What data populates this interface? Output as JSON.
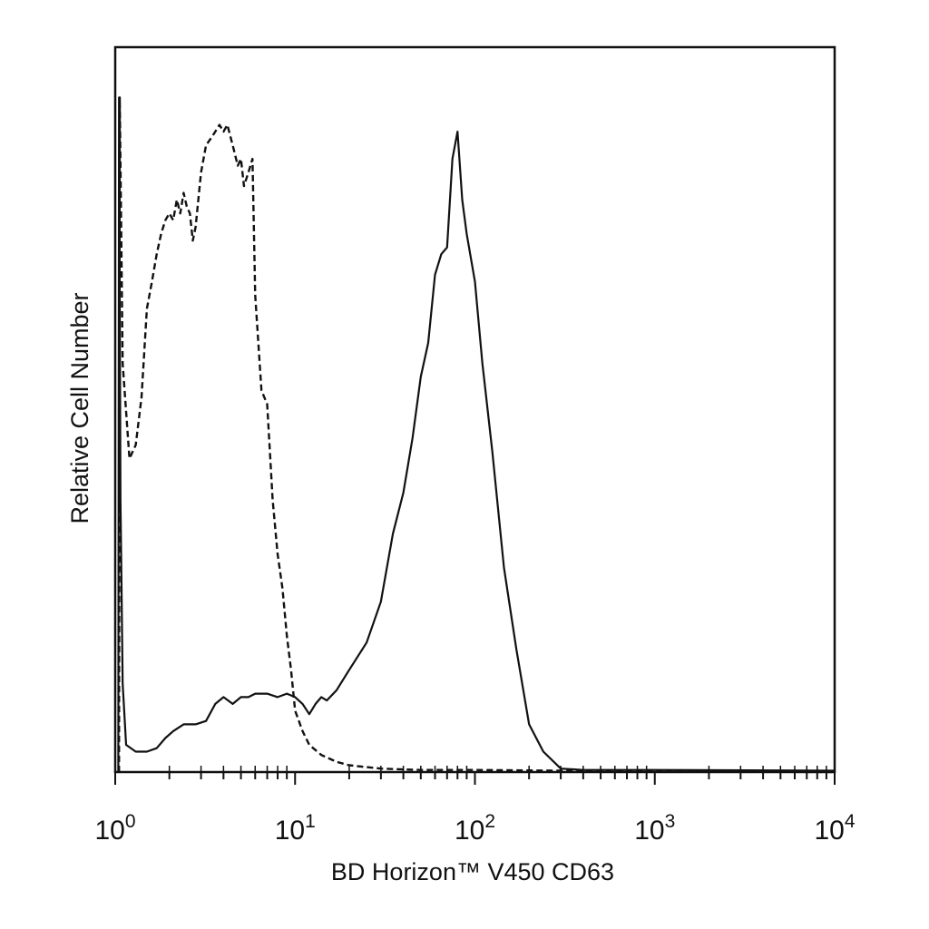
{
  "chart_data": {
    "type": "line",
    "title": "",
    "xlabel": "BD Horizon™ V450 CD63",
    "ylabel": "Relative Cell Number",
    "x_scale": "log",
    "xlim": [
      1,
      10000
    ],
    "ylim": [
      0,
      100
    ],
    "grid": false,
    "legend": "none",
    "x_ticks": [
      {
        "base": "10",
        "exp": "0",
        "value": 1
      },
      {
        "base": "10",
        "exp": "1",
        "value": 10
      },
      {
        "base": "10",
        "exp": "2",
        "value": 100
      },
      {
        "base": "10",
        "exp": "3",
        "value": 1000
      },
      {
        "base": "10",
        "exp": "4",
        "value": 10000
      }
    ],
    "series": [
      {
        "style": "dashed",
        "color": "#111111",
        "points": [
          [
            1.05,
            0
          ],
          [
            1.06,
            99
          ],
          [
            1.1,
            60
          ],
          [
            1.2,
            46
          ],
          [
            1.3,
            48
          ],
          [
            1.4,
            55
          ],
          [
            1.5,
            68
          ],
          [
            1.6,
            72
          ],
          [
            1.7,
            76
          ],
          [
            1.8,
            79
          ],
          [
            1.9,
            81
          ],
          [
            2.0,
            82
          ],
          [
            2.1,
            81
          ],
          [
            2.2,
            84
          ],
          [
            2.3,
            82
          ],
          [
            2.4,
            85
          ],
          [
            2.5,
            83
          ],
          [
            2.6,
            82
          ],
          [
            2.7,
            78
          ],
          [
            2.8,
            80
          ],
          [
            3.0,
            88
          ],
          [
            3.2,
            92
          ],
          [
            3.4,
            93
          ],
          [
            3.6,
            94
          ],
          [
            3.8,
            95
          ],
          [
            4.0,
            94
          ],
          [
            4.2,
            95
          ],
          [
            4.5,
            92
          ],
          [
            4.8,
            89
          ],
          [
            5.0,
            90
          ],
          [
            5.2,
            86
          ],
          [
            5.5,
            88
          ],
          [
            5.8,
            90
          ],
          [
            6.0,
            70
          ],
          [
            6.5,
            56
          ],
          [
            7.0,
            54
          ],
          [
            7.5,
            40
          ],
          [
            8.0,
            32
          ],
          [
            8.5,
            27
          ],
          [
            9.0,
            20
          ],
          [
            9.5,
            15
          ],
          [
            10.0,
            9
          ],
          [
            11,
            6
          ],
          [
            12,
            4
          ],
          [
            14,
            2.5
          ],
          [
            17,
            1.5
          ],
          [
            20,
            1
          ],
          [
            30,
            0.5
          ],
          [
            50,
            0.3
          ],
          [
            100,
            0.3
          ],
          [
            300,
            0.2
          ],
          [
            1000,
            0.1
          ],
          [
            10000,
            0
          ]
        ]
      },
      {
        "style": "solid",
        "color": "#111111",
        "points": [
          [
            1.04,
            0
          ],
          [
            1.05,
            99
          ],
          [
            1.07,
            40
          ],
          [
            1.1,
            13
          ],
          [
            1.15,
            4
          ],
          [
            1.3,
            3
          ],
          [
            1.5,
            3
          ],
          [
            1.7,
            3.5
          ],
          [
            1.9,
            5
          ],
          [
            2.1,
            6
          ],
          [
            2.4,
            7
          ],
          [
            2.8,
            7
          ],
          [
            3.2,
            7.5
          ],
          [
            3.6,
            10
          ],
          [
            4.0,
            11
          ],
          [
            4.5,
            10
          ],
          [
            5.0,
            11
          ],
          [
            5.5,
            11
          ],
          [
            6.0,
            11.5
          ],
          [
            7.0,
            11.5
          ],
          [
            8.0,
            11
          ],
          [
            9.0,
            11.5
          ],
          [
            10,
            11
          ],
          [
            11,
            10
          ],
          [
            12,
            8.5
          ],
          [
            13,
            10
          ],
          [
            14,
            11
          ],
          [
            15,
            10.5
          ],
          [
            17,
            12
          ],
          [
            20,
            15
          ],
          [
            25,
            19
          ],
          [
            30,
            25
          ],
          [
            35,
            35
          ],
          [
            40,
            41
          ],
          [
            45,
            49
          ],
          [
            50,
            58
          ],
          [
            55,
            63
          ],
          [
            60,
            73
          ],
          [
            65,
            76
          ],
          [
            70,
            77
          ],
          [
            75,
            90
          ],
          [
            80,
            94
          ],
          [
            85,
            84
          ],
          [
            90,
            79
          ],
          [
            100,
            72
          ],
          [
            110,
            60
          ],
          [
            125,
            47
          ],
          [
            145,
            30
          ],
          [
            170,
            18
          ],
          [
            200,
            7
          ],
          [
            240,
            3
          ],
          [
            300,
            0.5
          ],
          [
            400,
            0.3
          ],
          [
            1000,
            0.3
          ],
          [
            10000,
            0.2
          ]
        ]
      }
    ]
  }
}
